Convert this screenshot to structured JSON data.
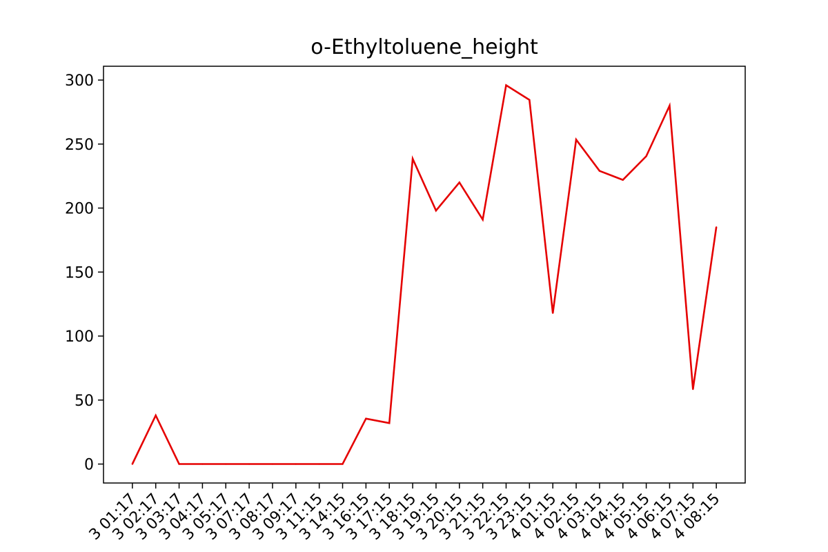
{
  "chart_data": {
    "type": "line",
    "title": "o-Ethyltoluene_height",
    "xlabel": "",
    "ylabel": "",
    "ylim": [
      -14.8,
      310.8
    ],
    "yticks": [
      0,
      50,
      100,
      150,
      200,
      250,
      300
    ],
    "grid": false,
    "legend": "none",
    "x_tick_rotation_deg": 45,
    "x": [
      "3 01:17",
      "3 02:17",
      "3 03:17",
      "3 04:17",
      "3 05:17",
      "3 07:17",
      "3 08:17",
      "3 09:17",
      "3 11:15",
      "3 14:15",
      "3 16:15",
      "3 17:15",
      "3 18:15",
      "3 19:15",
      "3 20:15",
      "3 21:15",
      "3 22:15",
      "3 23:15",
      "4 01:15",
      "4 02:15",
      "4 03:15",
      "4 04:15",
      "4 05:15",
      "4 06:15",
      "4 07:15",
      "4 08:15"
    ],
    "series": [
      {
        "color": "#e50000",
        "values": [
          0,
          38,
          0,
          0,
          0,
          0,
          0,
          0,
          0,
          0,
          35.5,
          32,
          238.5,
          198,
          220,
          191,
          296,
          284.5,
          118,
          253.5,
          229,
          222,
          240.5,
          280,
          58.5,
          185
        ]
      }
    ]
  }
}
